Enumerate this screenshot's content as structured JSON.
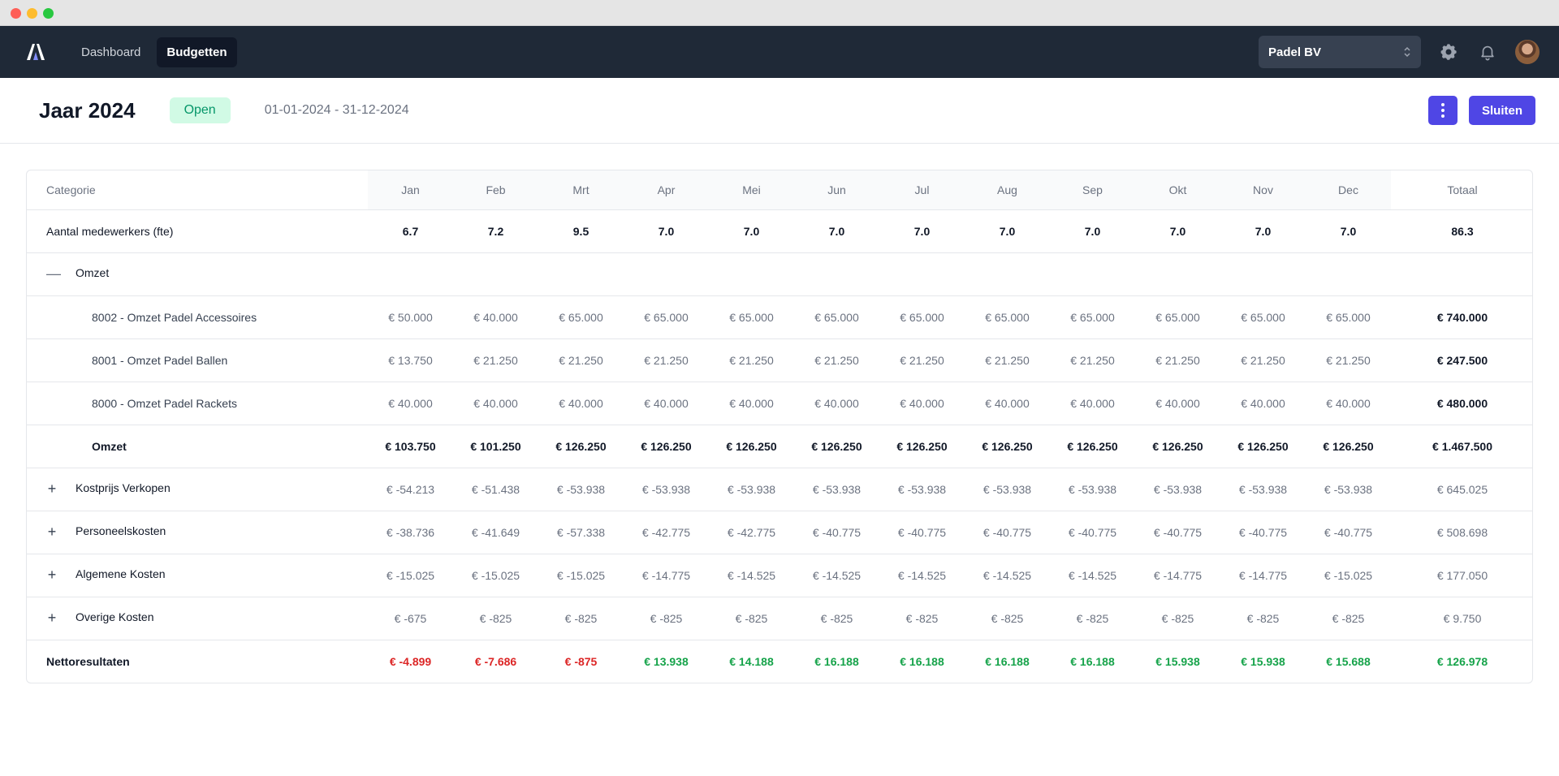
{
  "navbar": {
    "links": [
      "Dashboard",
      "Budgetten"
    ],
    "company": "Padel BV"
  },
  "header": {
    "title": "Jaar 2024",
    "status": "Open",
    "date_range": "01-01-2024 - 31-12-2024",
    "close_label": "Sluiten"
  },
  "table": {
    "headers": [
      "Categorie",
      "Jan",
      "Feb",
      "Mrt",
      "Apr",
      "Mei",
      "Jun",
      "Jul",
      "Aug",
      "Sep",
      "Okt",
      "Nov",
      "Dec",
      "Totaal"
    ],
    "fte": {
      "label": "Aantal medewerkers (fte)",
      "values": [
        "6.7",
        "7.2",
        "9.5",
        "7.0",
        "7.0",
        "7.0",
        "7.0",
        "7.0",
        "7.0",
        "7.0",
        "7.0",
        "7.0"
      ],
      "total": "86.3"
    },
    "omzet_group": {
      "toggle": "—",
      "label": "Omzet"
    },
    "omzet_rows": [
      {
        "label": "8002 - Omzet Padel Accessoires",
        "values": [
          "€ 50.000",
          "€ 40.000",
          "€ 65.000",
          "€ 65.000",
          "€ 65.000",
          "€ 65.000",
          "€ 65.000",
          "€ 65.000",
          "€ 65.000",
          "€ 65.000",
          "€ 65.000",
          "€ 65.000"
        ],
        "total": "€ 740.000"
      },
      {
        "label": "8001 - Omzet Padel Ballen",
        "values": [
          "€ 13.750",
          "€ 21.250",
          "€ 21.250",
          "€ 21.250",
          "€ 21.250",
          "€ 21.250",
          "€ 21.250",
          "€ 21.250",
          "€ 21.250",
          "€ 21.250",
          "€ 21.250",
          "€ 21.250"
        ],
        "total": "€ 247.500"
      },
      {
        "label": "8000 - Omzet Padel Rackets",
        "values": [
          "€ 40.000",
          "€ 40.000",
          "€ 40.000",
          "€ 40.000",
          "€ 40.000",
          "€ 40.000",
          "€ 40.000",
          "€ 40.000",
          "€ 40.000",
          "€ 40.000",
          "€ 40.000",
          "€ 40.000"
        ],
        "total": "€ 480.000"
      }
    ],
    "omzet_total": {
      "label": "Omzet",
      "values": [
        "€ 103.750",
        "€ 101.250",
        "€ 126.250",
        "€ 126.250",
        "€ 126.250",
        "€ 126.250",
        "€ 126.250",
        "€ 126.250",
        "€ 126.250",
        "€ 126.250",
        "€ 126.250",
        "€ 126.250"
      ],
      "total": "€ 1.467.500"
    },
    "cost_groups": [
      {
        "toggle": "+",
        "label": "Kostprijs Verkopen",
        "values": [
          "€ -54.213",
          "€ -51.438",
          "€ -53.938",
          "€ -53.938",
          "€ -53.938",
          "€ -53.938",
          "€ -53.938",
          "€ -53.938",
          "€ -53.938",
          "€ -53.938",
          "€ -53.938",
          "€ -53.938"
        ],
        "total": "€ 645.025"
      },
      {
        "toggle": "+",
        "label": "Personeelskosten",
        "values": [
          "€ -38.736",
          "€ -41.649",
          "€ -57.338",
          "€ -42.775",
          "€ -42.775",
          "€ -40.775",
          "€ -40.775",
          "€ -40.775",
          "€ -40.775",
          "€ -40.775",
          "€ -40.775",
          "€ -40.775"
        ],
        "total": "€ 508.698"
      },
      {
        "toggle": "+",
        "label": "Algemene Kosten",
        "values": [
          "€ -15.025",
          "€ -15.025",
          "€ -15.025",
          "€ -14.775",
          "€ -14.525",
          "€ -14.525",
          "€ -14.525",
          "€ -14.525",
          "€ -14.525",
          "€ -14.775",
          "€ -14.775",
          "€ -15.025"
        ],
        "total": "€ 177.050"
      },
      {
        "toggle": "+",
        "label": "Overige Kosten",
        "values": [
          "€ -675",
          "€ -825",
          "€ -825",
          "€ -825",
          "€ -825",
          "€ -825",
          "€ -825",
          "€ -825",
          "€ -825",
          "€ -825",
          "€ -825",
          "€ -825"
        ],
        "total": "€ 9.750"
      }
    ],
    "net": {
      "label": "Nettoresultaten",
      "values": [
        "€ -4.899",
        "€ -7.686",
        "€ -875",
        "€ 13.938",
        "€ 14.188",
        "€ 16.188",
        "€ 16.188",
        "€ 16.188",
        "€ 16.188",
        "€ 15.938",
        "€ 15.938",
        "€ 15.688"
      ],
      "signs": [
        "neg",
        "neg",
        "neg",
        "pos",
        "pos",
        "pos",
        "pos",
        "pos",
        "pos",
        "pos",
        "pos",
        "pos"
      ],
      "total": "€ 126.978",
      "total_sign": "pos"
    }
  },
  "colors": {
    "navbar": "#1f2937",
    "accent": "#4f46e5",
    "positive": "#16a34a",
    "negative": "#dc2626",
    "status_bg": "#d1fae5"
  }
}
